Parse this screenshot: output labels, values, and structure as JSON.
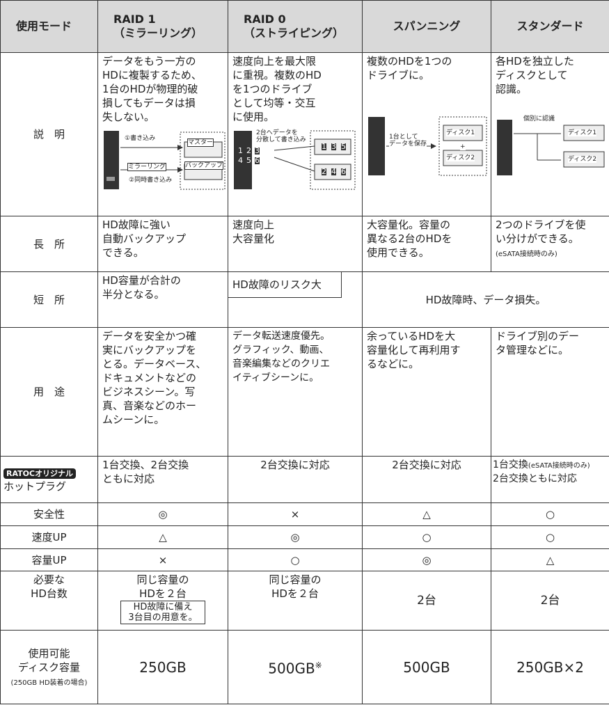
{
  "table": {
    "header": [
      "使用モード",
      "RAID 1\n（ミラーリング）",
      "RAID 0\n（ストライピング）",
      "スパンニング",
      "スタンダード"
    ],
    "description": {
      "label": "説　明",
      "cells": [
        "データをもう一方の\nHDに複製するため、\n1台のHDが物理的破\n損してもデータは損\n失しない。",
        "速度向上を最大限\nに重視。複数のHD\nを1つのドライブ\nとして均等・交互\nに使用。",
        "複数のHDを1つの\nドライブに。",
        "各HDを独立した\nディスクとして\n認識。"
      ]
    },
    "diagrams": [
      {
        "write": "①書き込み",
        "master": "マスター",
        "mirror": "ミラーリング",
        "backup": "バックアップ",
        "simul": "②同時書き込み"
      },
      {
        "note": "2台へデータを\n分散して書き込み",
        "blocks": [
          "1",
          "2",
          "3",
          "4",
          "5",
          "6"
        ]
      },
      {
        "note": "1台として\nデータを保存",
        "disk1": "ディスク1",
        "plus": "+",
        "disk2": "ディスク2"
      },
      {
        "note": "個別に認識",
        "disk1": "ディスク1",
        "disk2": "ディスク2"
      }
    ],
    "merits": {
      "label": "長　所",
      "cells": [
        "HD故障に強い\n自動バックアップ\nできる。",
        "速度向上\n大容量化",
        "大容量化。容量の\n異なる2台のHDを\n使用できる。",
        "2つのドライブを使\nい分けができる。"
      ],
      "note": "(eSATA接続時のみ)"
    },
    "demerits": {
      "label": "短　所",
      "cells": [
        "HD容量が合計の\n半分となる。",
        "HD故障のリスク大",
        "HD故障時、データ損失。"
      ]
    },
    "uses": {
      "label": "用　途",
      "cells": [
        "データを安全かつ確\n実にバックアップを\nとる。データベース、\nドキュメントなどの\nビジネスシーン。写\n真、音楽などのホー\nムシーンに。",
        "データ転送速度優先。\nグラフィック、動画、\n音楽編集などのクリエ\nイティブシーンに。",
        "余っているHDを大\n容量化して再利用す\nるなどに。",
        "ドライブ別のデー\nタ管理などに。"
      ]
    },
    "hotplug": {
      "badge": "RATOCオリジナル",
      "label": "ホットプラグ",
      "cells": [
        "1台交換、2台交換\nともに対応",
        "2台交換に対応",
        "2台交換に対応"
      ],
      "standard": {
        "main": "1台交換",
        "note": "(eSATA接続時のみ)",
        "line2": "2台交換ともに対応"
      }
    },
    "ratings": [
      {
        "label": "安全性",
        "cells": [
          "◎",
          "×",
          "△",
          "○"
        ]
      },
      {
        "label": "速度UP",
        "cells": [
          "△",
          "◎",
          "○",
          "○"
        ]
      },
      {
        "label": "容量UP",
        "cells": [
          "×",
          "○",
          "◎",
          "△"
        ]
      }
    ],
    "drives": {
      "label": "必要な\nHD台数",
      "cells": [
        "同じ容量の\nHDを２台",
        "同じ容量の\nHDを２台",
        "2台",
        "2台"
      ],
      "note": "HD故障に備え\n3台目の用意を。"
    },
    "capacity": {
      "label": "使用可能\nディスク容量",
      "sublabel": "(250GB HD装着の場合)",
      "cells": [
        "250GB",
        "500GB",
        "500GB",
        "250GB×2"
      ],
      "mark": "※"
    }
  }
}
